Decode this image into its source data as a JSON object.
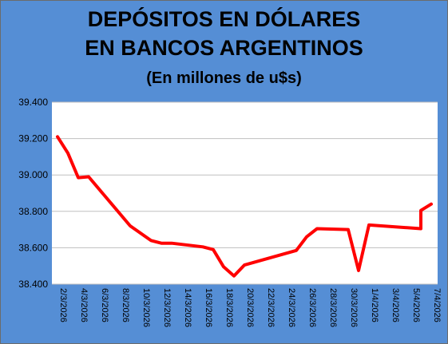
{
  "chart_data": {
    "type": "line",
    "title": "DEPÓSITOS EN DÓLARES",
    "title_line2": "EN BANCOS ARGENTINOS",
    "subtitle": "(En millones de u$s)",
    "colors": {
      "background": "#558ed5",
      "plot_area": "#ffffff",
      "line": "#ff0000",
      "grid": "#bfbfbf"
    },
    "ylim": [
      38400,
      39400
    ],
    "y_ticks": [
      "38.400",
      "38.600",
      "38.800",
      "39.000",
      "39.200",
      "39.400"
    ],
    "x_ticks": [
      "2/3/2026",
      "4/3/2026",
      "6/3/2026",
      "8/3/2026",
      "10/3/2026",
      "12/3/2026",
      "14/3/2026",
      "16/3/2026",
      "18/3/2026",
      "20/3/2026",
      "22/3/2026",
      "24/3/2026",
      "26/3/2026",
      "28/3/2026",
      "30/3/2026",
      "1/4/2026",
      "3/4/2026",
      "5/4/2026",
      "7/4/2026"
    ],
    "grid": true,
    "legend": "none",
    "series": [
      {
        "points": [
          [
            "2026-03-02",
            39210
          ],
          [
            "2026-03-03",
            39120
          ],
          [
            "2026-03-04",
            38985
          ],
          [
            "2026-03-05",
            38990
          ],
          [
            "2026-03-09",
            38720
          ],
          [
            "2026-03-11",
            38640
          ],
          [
            "2026-03-12",
            38625
          ],
          [
            "2026-03-13",
            38625
          ],
          [
            "2026-03-16",
            38605
          ],
          [
            "2026-03-17",
            38590
          ],
          [
            "2026-03-18",
            38495
          ],
          [
            "2026-03-19",
            38445
          ],
          [
            "2026-03-20",
            38505
          ],
          [
            "2026-03-25",
            38585
          ],
          [
            "2026-03-26",
            38660
          ],
          [
            "2026-03-27",
            38705
          ],
          [
            "2026-03-30",
            38700
          ],
          [
            "2026-03-31",
            38475
          ],
          [
            "2026-04-01",
            38725
          ],
          [
            "2026-04-06",
            38705
          ],
          [
            "2026-04-06",
            38805
          ],
          [
            "2026-04-07",
            38840
          ]
        ]
      }
    ]
  }
}
